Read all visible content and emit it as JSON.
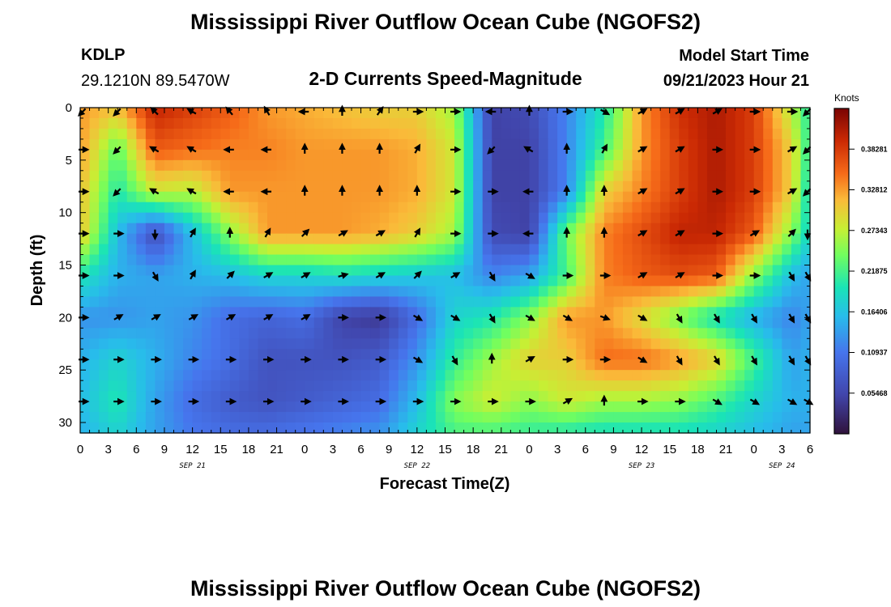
{
  "header": {
    "title": "Mississippi River Outflow Ocean Cube (NGOFS2)",
    "station": "KDLP",
    "coords": "29.1210N  89.5470W",
    "subtitle": "2-D Currents Speed-Magnitude",
    "model_start_label": "Model Start Time",
    "model_start_value": "09/21/2023 Hour 21"
  },
  "footer": {
    "title": "Mississippi River Outflow Ocean Cube (NGOFS2)"
  },
  "chart_data": {
    "type": "heatmap",
    "title": "2-D Currents Speed-Magnitude",
    "xlabel": "Forecast Time(Z)",
    "ylabel": "Depth (ft)",
    "x_unit": "forecast hour from Sep 21 00Z",
    "xlim": [
      0,
      78
    ],
    "ylim": [
      0,
      31
    ],
    "x_ticks": [
      {
        "h": 0,
        "label": "0"
      },
      {
        "h": 3,
        "label": "3"
      },
      {
        "h": 6,
        "label": "6"
      },
      {
        "h": 9,
        "label": "9"
      },
      {
        "h": 12,
        "label": "12"
      },
      {
        "h": 15,
        "label": "15"
      },
      {
        "h": 18,
        "label": "18"
      },
      {
        "h": 21,
        "label": "21"
      },
      {
        "h": 24,
        "label": "0"
      },
      {
        "h": 27,
        "label": "3"
      },
      {
        "h": 30,
        "label": "6"
      },
      {
        "h": 33,
        "label": "9"
      },
      {
        "h": 36,
        "label": "12"
      },
      {
        "h": 39,
        "label": "15"
      },
      {
        "h": 42,
        "label": "18"
      },
      {
        "h": 45,
        "label": "21"
      },
      {
        "h": 48,
        "label": "0"
      },
      {
        "h": 51,
        "label": "3"
      },
      {
        "h": 54,
        "label": "6"
      },
      {
        "h": 57,
        "label": "9"
      },
      {
        "h": 60,
        "label": "12"
      },
      {
        "h": 63,
        "label": "15"
      },
      {
        "h": 66,
        "label": "18"
      },
      {
        "h": 69,
        "label": "21"
      },
      {
        "h": 72,
        "label": "0"
      },
      {
        "h": 75,
        "label": "3"
      },
      {
        "h": 78,
        "label": "6"
      }
    ],
    "date_labels": [
      {
        "h": 12,
        "label": "SEP 21"
      },
      {
        "h": 36,
        "label": "SEP 22"
      },
      {
        "h": 60,
        "label": "SEP 23"
      },
      {
        "h": 75,
        "label": "SEP 24"
      }
    ],
    "y_ticks": [
      {
        "d": 0,
        "label": "0"
      },
      {
        "d": 5,
        "label": "5"
      },
      {
        "d": 10,
        "label": "10"
      },
      {
        "d": 15,
        "label": "15"
      },
      {
        "d": 20,
        "label": "20"
      },
      {
        "d": 25,
        "label": "25"
      },
      {
        "d": 30,
        "label": "30"
      }
    ],
    "colorbar": {
      "units": "Knots",
      "range": [
        0,
        0.4375
      ],
      "tick_labels": [
        "0.38281",
        "0.32812",
        "0.27343",
        "0.21875",
        "0.16406",
        "0.10937",
        "0.05468"
      ],
      "tick_values": [
        0.38281,
        0.32812,
        0.27343,
        0.21875,
        0.16406,
        0.10937,
        0.05468
      ]
    },
    "grid_hours": [
      0,
      4,
      8,
      12,
      16,
      20,
      24,
      28,
      32,
      36,
      40,
      44,
      48,
      52,
      56,
      60,
      64,
      68,
      72,
      76,
      78
    ],
    "grid_depths": [
      0,
      4,
      8,
      12,
      16,
      20,
      24,
      28,
      31
    ],
    "speed_knots": [
      [
        0.33,
        0.31,
        0.4,
        0.38,
        0.36,
        0.33,
        0.32,
        0.31,
        0.3,
        0.3,
        0.26,
        0.05,
        0.06,
        0.12,
        0.2,
        0.33,
        0.39,
        0.41,
        0.38,
        0.27,
        0.2
      ],
      [
        0.33,
        0.23,
        0.36,
        0.35,
        0.34,
        0.34,
        0.33,
        0.33,
        0.33,
        0.32,
        0.28,
        0.05,
        0.05,
        0.12,
        0.22,
        0.33,
        0.38,
        0.41,
        0.38,
        0.3,
        0.2
      ],
      [
        0.31,
        0.2,
        0.28,
        0.27,
        0.33,
        0.33,
        0.33,
        0.33,
        0.33,
        0.32,
        0.28,
        0.05,
        0.05,
        0.12,
        0.3,
        0.34,
        0.38,
        0.41,
        0.38,
        0.3,
        0.18
      ],
      [
        0.31,
        0.16,
        0.06,
        0.16,
        0.25,
        0.33,
        0.33,
        0.33,
        0.32,
        0.3,
        0.26,
        0.06,
        0.05,
        0.24,
        0.34,
        0.37,
        0.4,
        0.4,
        0.36,
        0.25,
        0.18
      ],
      [
        0.2,
        0.15,
        0.14,
        0.15,
        0.16,
        0.18,
        0.18,
        0.19,
        0.18,
        0.17,
        0.16,
        0.12,
        0.14,
        0.22,
        0.34,
        0.36,
        0.37,
        0.36,
        0.25,
        0.16,
        0.14
      ],
      [
        0.13,
        0.13,
        0.14,
        0.13,
        0.1,
        0.09,
        0.1,
        0.05,
        0.04,
        0.1,
        0.18,
        0.2,
        0.25,
        0.33,
        0.33,
        0.29,
        0.24,
        0.19,
        0.15,
        0.12,
        0.14
      ],
      [
        0.15,
        0.18,
        0.15,
        0.12,
        0.1,
        0.07,
        0.07,
        0.07,
        0.08,
        0.13,
        0.21,
        0.26,
        0.3,
        0.3,
        0.35,
        0.35,
        0.33,
        0.3,
        0.22,
        0.14,
        0.15
      ],
      [
        0.16,
        0.2,
        0.14,
        0.1,
        0.08,
        0.07,
        0.08,
        0.09,
        0.1,
        0.16,
        0.25,
        0.28,
        0.25,
        0.28,
        0.26,
        0.26,
        0.25,
        0.22,
        0.18,
        0.15,
        0.15
      ],
      [
        0.15,
        0.18,
        0.14,
        0.11,
        0.1,
        0.1,
        0.11,
        0.12,
        0.13,
        0.18,
        0.22,
        0.22,
        0.21,
        0.2,
        0.19,
        0.19,
        0.19,
        0.18,
        0.16,
        0.14,
        0.14
      ]
    ],
    "arrow_hours": [
      0,
      4,
      8,
      12,
      16,
      20,
      24,
      28,
      32,
      36,
      40,
      44,
      48,
      52,
      56,
      60,
      64,
      68,
      72,
      76,
      78
    ],
    "arrow_depths": [
      0,
      4,
      8,
      12,
      16,
      20,
      24,
      28
    ],
    "arrow_dirs_deg": [
      [
        225,
        225,
        315,
        300,
        320,
        330,
        270,
        0,
        35,
        90,
        90,
        270,
        0,
        90,
        120,
        60,
        60,
        60,
        90,
        90,
        225
      ],
      [
        90,
        225,
        300,
        300,
        270,
        270,
        0,
        0,
        0,
        30,
        90,
        225,
        300,
        0,
        30,
        60,
        60,
        90,
        90,
        60,
        225
      ],
      [
        90,
        225,
        300,
        300,
        270,
        270,
        0,
        0,
        0,
        0,
        90,
        90,
        270,
        0,
        0,
        60,
        60,
        90,
        90,
        60,
        225
      ],
      [
        90,
        90,
        180,
        30,
        0,
        30,
        45,
        60,
        60,
        30,
        90,
        90,
        270,
        0,
        0,
        60,
        60,
        90,
        60,
        45,
        180
      ],
      [
        90,
        90,
        150,
        30,
        45,
        60,
        60,
        75,
        60,
        45,
        60,
        150,
        120,
        90,
        90,
        60,
        60,
        90,
        90,
        150,
        150
      ],
      [
        90,
        60,
        60,
        60,
        60,
        60,
        60,
        90,
        90,
        120,
        120,
        150,
        120,
        120,
        110,
        120,
        150,
        150,
        150,
        150,
        150
      ],
      [
        90,
        90,
        90,
        90,
        90,
        90,
        90,
        90,
        90,
        120,
        150,
        0,
        60,
        90,
        90,
        120,
        150,
        150,
        150,
        150,
        150
      ],
      [
        90,
        90,
        90,
        90,
        90,
        90,
        90,
        90,
        90,
        90,
        90,
        90,
        90,
        60,
        0,
        90,
        90,
        120,
        120,
        120,
        120
      ]
    ]
  }
}
